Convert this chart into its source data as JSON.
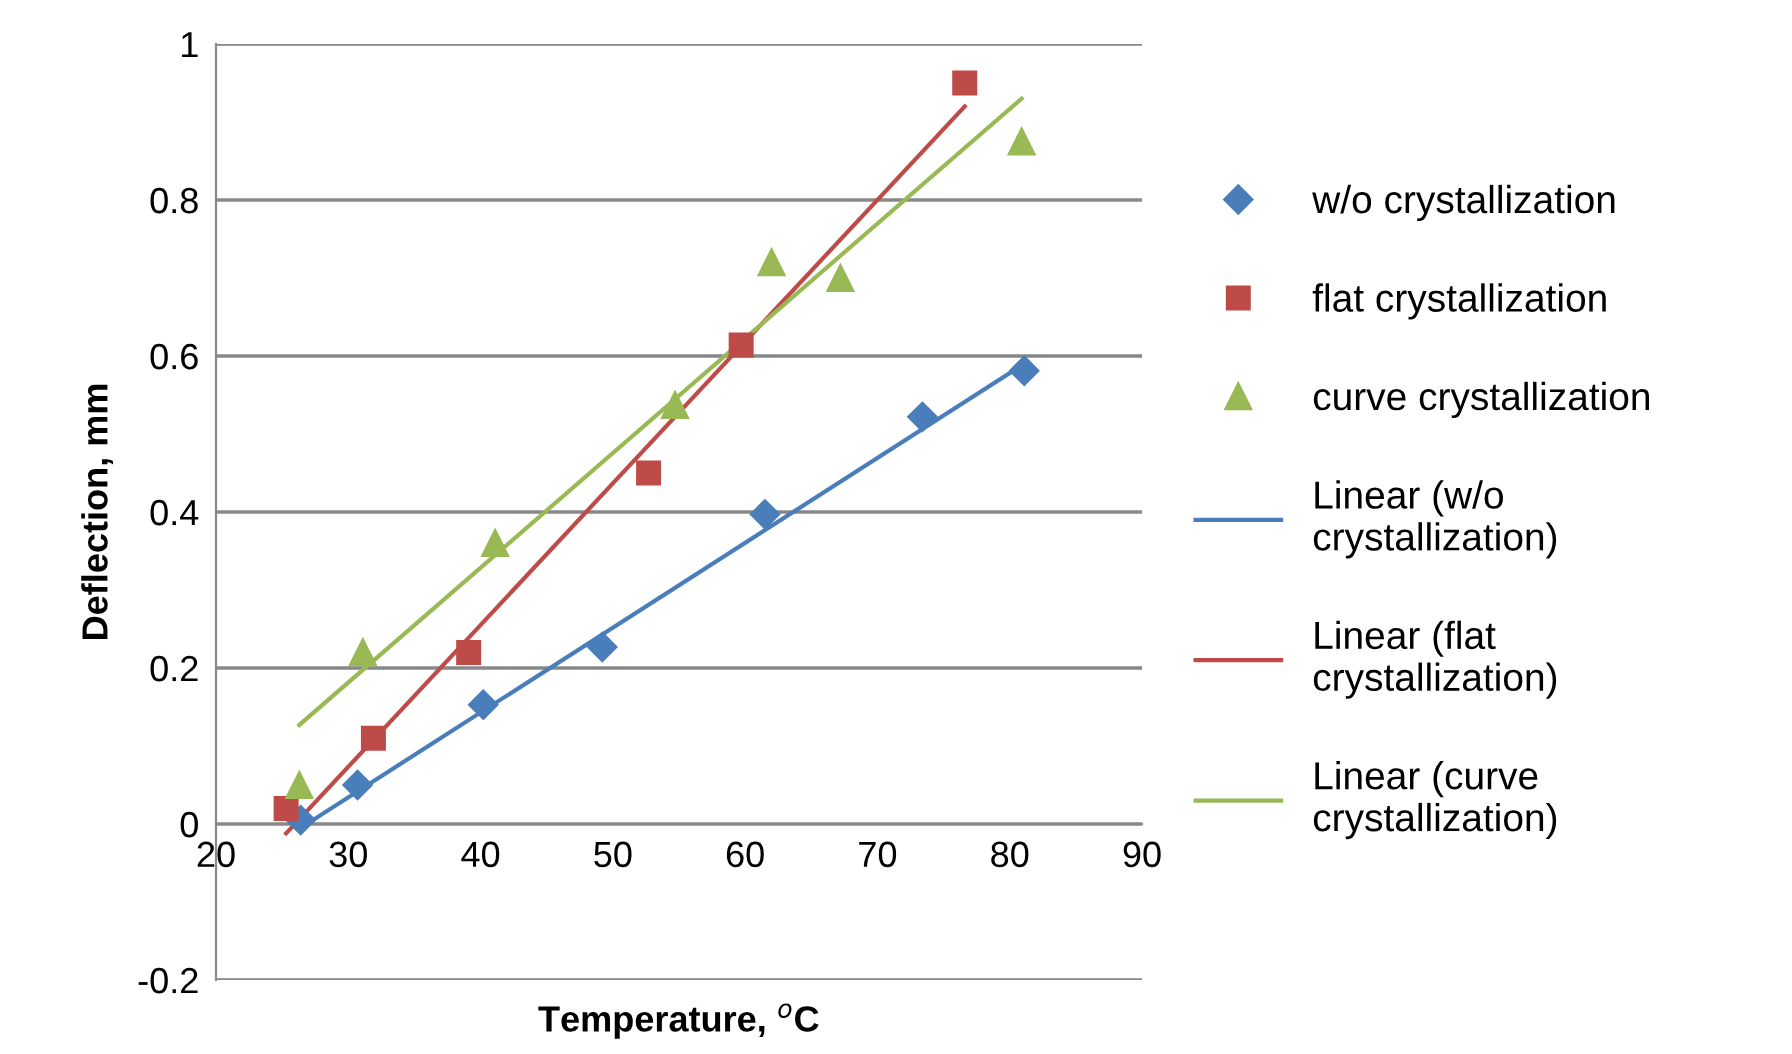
{
  "chart_data": {
    "type": "scatter",
    "xlabel": "Temperature, $^{o}$C",
    "ylabel": "Deflection, mm",
    "xlim": [
      20,
      90
    ],
    "xticks": [
      20,
      30,
      40,
      50,
      60,
      70,
      80,
      90
    ],
    "ylim": [
      -0.2,
      1
    ],
    "yticks": [
      {
        "value": -0.2,
        "label": "-0.2"
      },
      0,
      0.2,
      0.4,
      0.6,
      0.8,
      1
    ],
    "grid": "y",
    "legend": "right",
    "series": [
      {
        "name": "w/o crystallization",
        "marker": "diamond",
        "color": "#4a7ebb",
        "x": [
          26.4,
          30.7,
          40.2,
          49.2,
          61.5,
          73.4,
          81.1
        ],
        "values": [
          0.005,
          0.05,
          0.153,
          0.227,
          0.397,
          0.522,
          0.581
        ]
      },
      {
        "name": "flat crystallization",
        "marker": "square",
        "color": "#be4b48",
        "x": [
          25.3,
          31.9,
          39.1,
          52.7,
          59.7,
          76.6
        ],
        "values": [
          0.02,
          0.11,
          0.22,
          0.45,
          0.614,
          0.95
        ]
      },
      {
        "name": "curve crystallization",
        "marker": "triangle",
        "color": "#98b954",
        "x": [
          26.3,
          31.1,
          41.1,
          54.7,
          62.0,
          67.2,
          80.9
        ],
        "values": [
          0.05,
          0.22,
          0.36,
          0.537,
          0.72,
          0.7,
          0.875
        ]
      },
      {
        "name": "Linear (w/o\ncrystallization)",
        "type": "line",
        "marker": "none",
        "color": "#4a7ebb",
        "x": [
          26.4,
          81.1
        ],
        "values": [
          -0.005,
          0.59
        ]
      },
      {
        "name": "Linear (flat\ncrystallization)",
        "type": "line",
        "marker": "none",
        "color": "#be4b48",
        "x": [
          25.3,
          76.6
        ],
        "values": [
          -0.012,
          0.92
        ]
      },
      {
        "name": "Linear (curve\ncrystallization)",
        "type": "line",
        "marker": "none",
        "color": "#98b954",
        "x": [
          26.3,
          80.9
        ],
        "values": [
          0.127,
          0.93
        ]
      }
    ]
  }
}
